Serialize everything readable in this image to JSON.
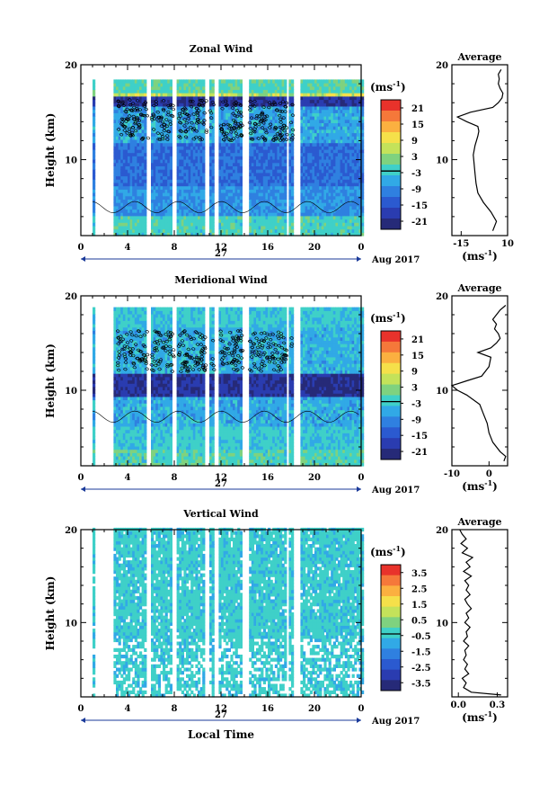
{
  "chart_data": [
    {
      "type": "heatmap",
      "title": "Zonal Wind",
      "ylabel": "Height (km)",
      "yticks": [
        "20",
        "10"
      ],
      "xticks": [
        "0",
        "4",
        "8",
        "12",
        "16",
        "20",
        "0"
      ],
      "date_label": "27",
      "month_label": "Aug 2017",
      "colorbar": {
        "unit": "(ms",
        "unit_sup": "-1",
        "unit_close": ")",
        "ticks": [
          "21",
          "15",
          "9",
          "3",
          "-3",
          "-9",
          "-15",
          "-21"
        ],
        "colors": [
          "#e8322b",
          "#f5783a",
          "#fbb040",
          "#f5e04a",
          "#c4e25a",
          "#7fd27f",
          "#3fd0c8",
          "#31a9e6",
          "#2f80e0",
          "#2b5ad0",
          "#2a3cb0",
          "#262a78"
        ]
      },
      "xlim": [
        0,
        24
      ],
      "ylim": [
        2,
        20
      ],
      "gaps_hours": [
        [
          0,
          0.9
        ],
        [
          1.1,
          2.7
        ],
        [
          5.6,
          5.9
        ],
        [
          7.8,
          8.2
        ],
        [
          10.6,
          10.9
        ],
        [
          11.3,
          11.8
        ],
        [
          13.7,
          14.3
        ],
        [
          17.5,
          17.8
        ],
        [
          18.2,
          18.8
        ]
      ],
      "profile": {
        "title": "Average",
        "xticks": [
          "-15",
          "10"
        ],
        "xlabel": "(ms",
        "xlabel_sup": "-1",
        "xlabel_close": ")",
        "yticks": [
          "20",
          "10"
        ],
        "xlim": [
          -20,
          10
        ],
        "height_km": [
          2.5,
          3.5,
          4.5,
          5.5,
          6.5,
          7.5,
          8.5,
          9.5,
          10.5,
          11.5,
          12.5,
          13.0,
          13.5,
          14.0,
          14.5,
          15.0,
          15.5,
          16.0,
          16.5,
          17.0,
          17.5,
          18.0,
          18.5,
          19.0,
          19.5
        ],
        "wind_ms": [
          2.0,
          4.0,
          1.0,
          -3.0,
          -6.0,
          -7.0,
          -7.5,
          -8.0,
          -8.5,
          -7.5,
          -6.0,
          -5.5,
          -6.0,
          -12.0,
          -17.0,
          -10.0,
          2.0,
          5.0,
          7.0,
          7.5,
          6.0,
          5.0,
          5.5,
          5.0,
          6.5
        ]
      }
    },
    {
      "type": "heatmap",
      "title": "Meridional Wind",
      "ylabel": "Height (km)",
      "yticks": [
        "20",
        "10"
      ],
      "xticks": [
        "0",
        "4",
        "8",
        "12",
        "16",
        "20",
        "0"
      ],
      "date_label": "27",
      "month_label": "Aug 2017",
      "colorbar": {
        "unit": "(ms",
        "unit_sup": "-1",
        "unit_close": ")",
        "ticks": [
          "21",
          "15",
          "9",
          "3",
          "-3",
          "-9",
          "-15",
          "-21"
        ],
        "colors": [
          "#e8322b",
          "#f5783a",
          "#fbb040",
          "#f5e04a",
          "#c4e25a",
          "#7fd27f",
          "#3fd0c8",
          "#31a9e6",
          "#2f80e0",
          "#2b5ad0",
          "#2a3cb0",
          "#262a78"
        ]
      },
      "xlim": [
        0,
        24
      ],
      "ylim": [
        2,
        20
      ],
      "gaps_hours": [
        [
          0,
          0.9
        ],
        [
          1.1,
          2.7
        ],
        [
          5.6,
          5.9
        ],
        [
          7.8,
          8.2
        ],
        [
          10.6,
          10.9
        ],
        [
          11.3,
          11.8
        ],
        [
          13.7,
          14.3
        ],
        [
          17.5,
          17.8
        ],
        [
          18.2,
          18.8
        ]
      ],
      "profile": {
        "title": "Average",
        "xticks": [
          "-10",
          "0"
        ],
        "xlabel": "(ms",
        "xlabel_sup": "-1",
        "xlabel_close": ")",
        "yticks": [
          "20",
          "10"
        ],
        "xlim": [
          -10,
          5
        ],
        "height_km": [
          2.5,
          3.0,
          3.5,
          4.5,
          5.5,
          6.5,
          7.5,
          8.5,
          9.5,
          10.0,
          10.5,
          11.0,
          11.5,
          12.5,
          13.5,
          14.0,
          14.5,
          15.0,
          15.5,
          16.0,
          16.5,
          17.0,
          17.5,
          18.0,
          18.5,
          19.0
        ],
        "wind_ms": [
          4.0,
          4.5,
          3.0,
          1.0,
          0.0,
          -0.5,
          -1.5,
          -2.5,
          -6.0,
          -8.5,
          -10.0,
          -6.0,
          -2.0,
          0.0,
          0.5,
          -3.0,
          0.5,
          2.0,
          3.0,
          2.5,
          1.5,
          2.0,
          1.0,
          2.0,
          3.0,
          4.5
        ]
      }
    },
    {
      "type": "heatmap",
      "title": "Vertical Wind",
      "ylabel": "Height (km)",
      "xlabel": "Local Time",
      "yticks": [
        "20",
        "10"
      ],
      "xticks": [
        "0",
        "4",
        "8",
        "12",
        "16",
        "20",
        "0"
      ],
      "date_label": "27",
      "month_label": "Aug 2017",
      "colorbar": {
        "unit": "(ms",
        "unit_sup": "-1",
        "unit_close": ")",
        "ticks": [
          "3.5",
          "2.5",
          "1.5",
          "0.5",
          "-0.5",
          "-1.5",
          "-2.5",
          "-3.5"
        ],
        "colors": [
          "#e8322b",
          "#f5783a",
          "#fbb040",
          "#f5e04a",
          "#c4e25a",
          "#7fd27f",
          "#3fd0c8",
          "#31a9e6",
          "#2f80e0",
          "#2b5ad0",
          "#2a3cb0",
          "#262a78"
        ]
      },
      "xlim": [
        0,
        24
      ],
      "ylim": [
        2,
        20
      ],
      "gaps_hours": [
        [
          0,
          0.9
        ],
        [
          1.1,
          2.7
        ],
        [
          5.6,
          5.9
        ],
        [
          7.8,
          8.2
        ],
        [
          10.6,
          10.9
        ],
        [
          11.3,
          11.8
        ],
        [
          13.7,
          14.3
        ],
        [
          17.5,
          17.8
        ],
        [
          18.2,
          18.8
        ]
      ],
      "profile": {
        "title": "Average",
        "xticks": [
          "0.0",
          "0.3"
        ],
        "xlabel": "(ms",
        "xlabel_sup": "-1",
        "xlabel_close": ")",
        "yticks": [
          "20",
          "10"
        ],
        "xlim": [
          -0.05,
          0.38
        ],
        "height_km": [
          2.2,
          2.5,
          3.0,
          3.5,
          4.0,
          4.5,
          5.0,
          5.5,
          6.0,
          6.5,
          7.0,
          7.5,
          8.0,
          8.5,
          9.0,
          9.5,
          10.0,
          10.5,
          11.0,
          11.5,
          12.0,
          12.5,
          13.0,
          13.5,
          14.0,
          14.5,
          15.0,
          15.5,
          16.0,
          16.5,
          17.0,
          17.5,
          18.0,
          18.5,
          19.0,
          19.5,
          20.0
        ],
        "wind_ms": [
          0.33,
          0.1,
          0.04,
          0.06,
          0.03,
          0.08,
          0.05,
          0.07,
          0.04,
          0.06,
          0.05,
          0.08,
          0.04,
          0.07,
          0.06,
          0.09,
          0.05,
          0.08,
          0.06,
          0.1,
          0.07,
          0.05,
          0.09,
          0.06,
          0.08,
          0.05,
          0.1,
          0.04,
          0.09,
          0.06,
          0.11,
          0.03,
          0.07,
          0.02,
          0.06,
          0.03,
          0.01
        ]
      }
    }
  ]
}
